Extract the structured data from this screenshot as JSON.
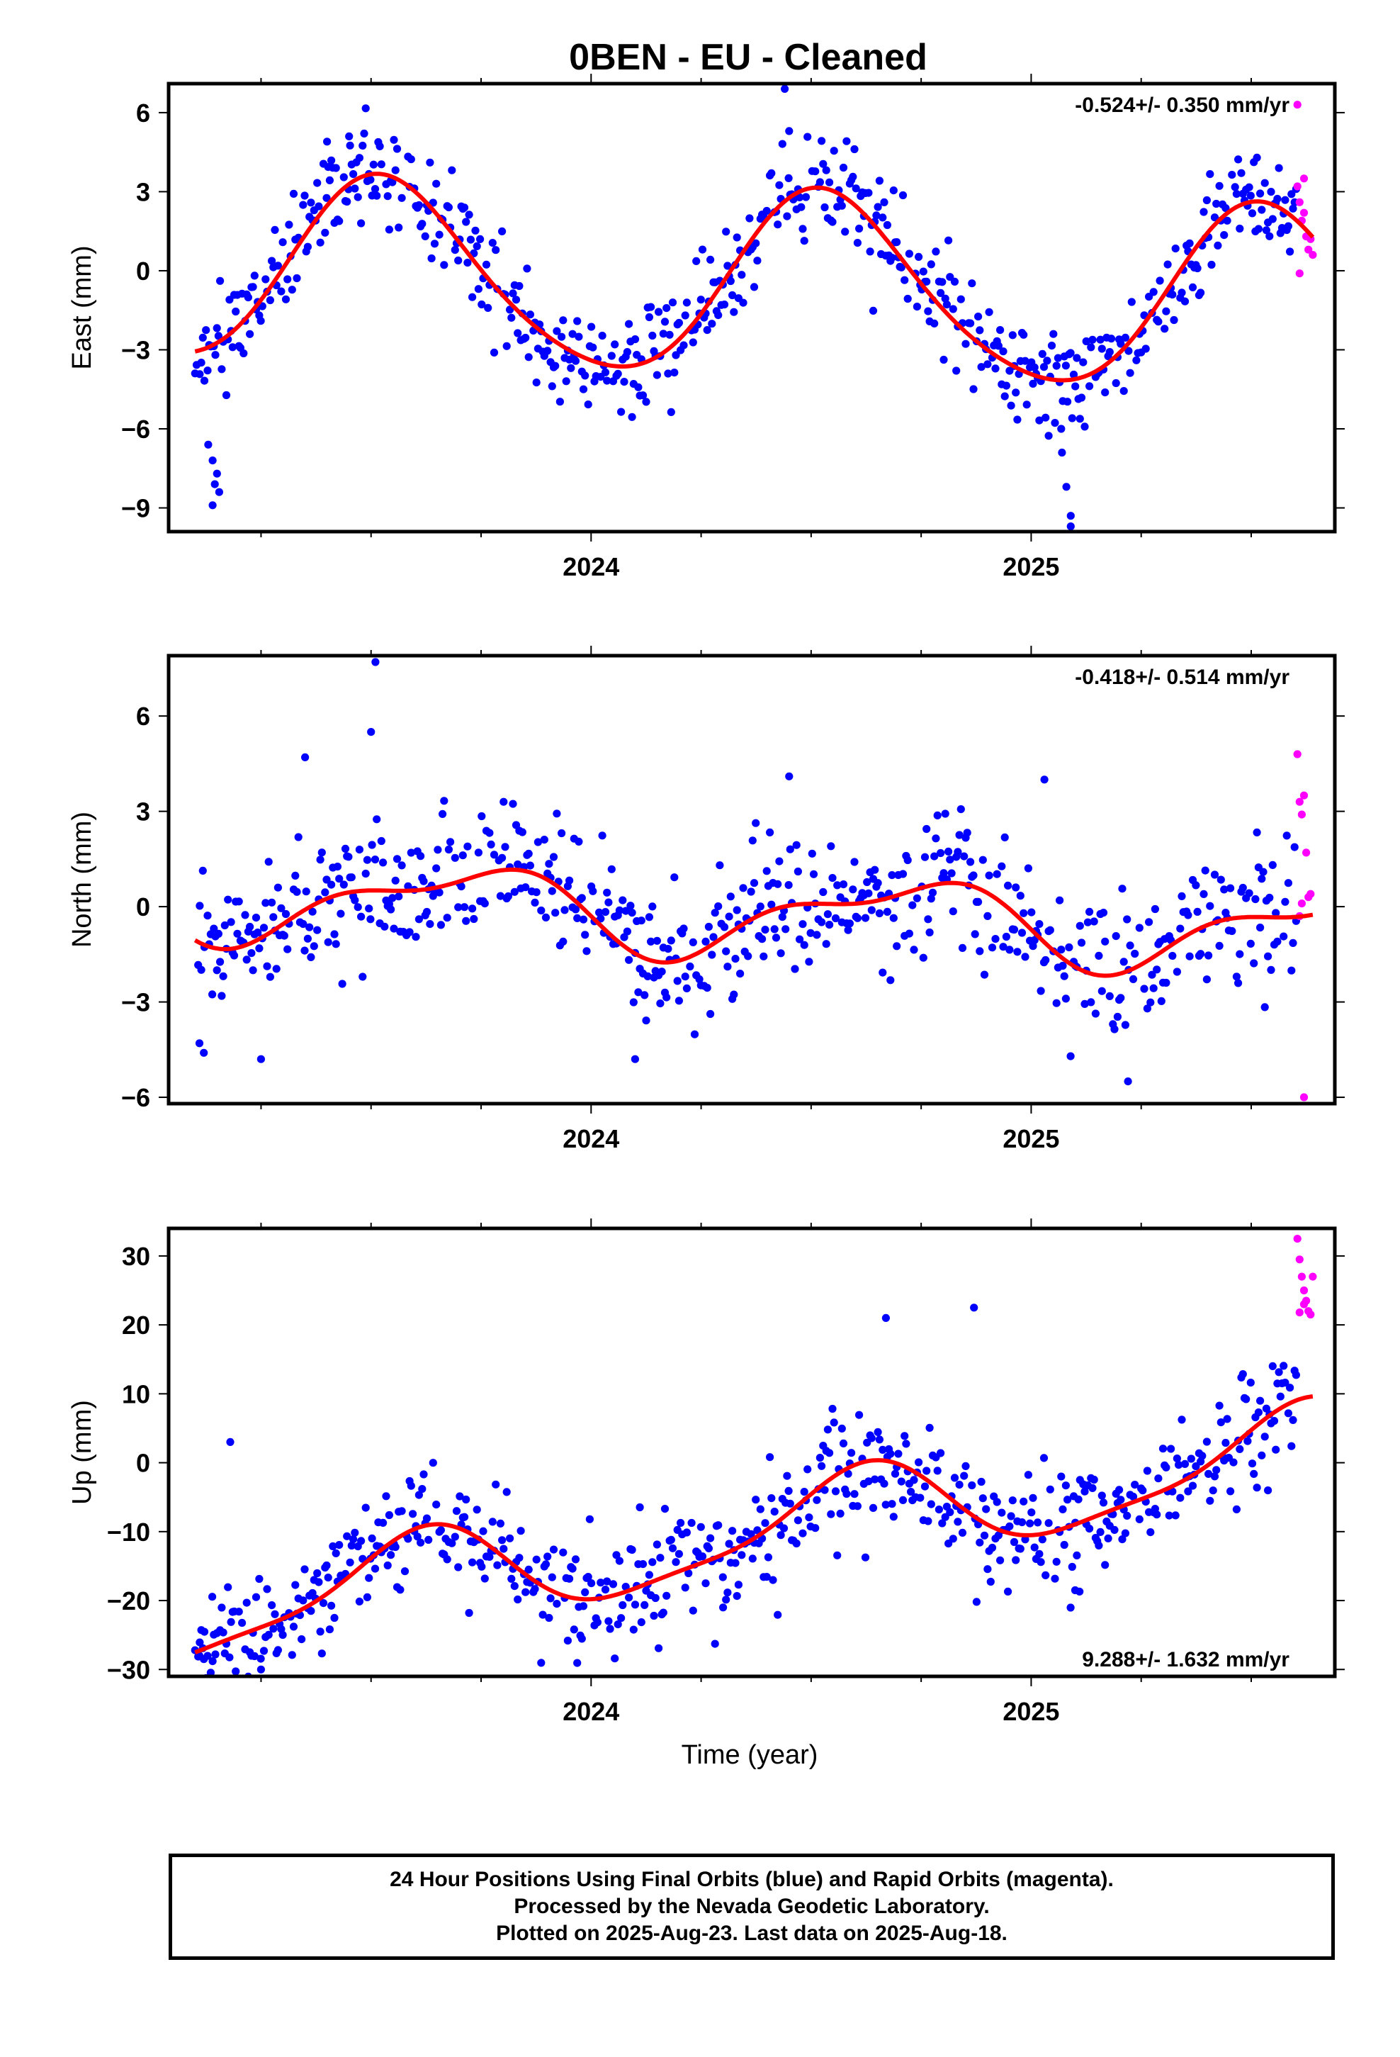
{
  "figure": {
    "title": "0BEN  - EU - Cleaned",
    "xlabel": "Time (year)"
  },
  "colors": {
    "final": "#0000ff",
    "rapid": "#ff00ff",
    "model": "#ff0000",
    "frame": "#000000"
  },
  "chart_data": [
    {
      "type": "scatter",
      "name": "east",
      "ylabel": "East (mm)",
      "rate_text": "-0.524+/- 0.350 mm/yr",
      "rate_position": "top-right",
      "xlim": [
        2023.04,
        2025.69
      ],
      "ylim": [
        -9.9,
        7.1
      ],
      "xticks": [
        2024,
        2025
      ],
      "xtick_labels": [
        "2024",
        "2025"
      ],
      "yticks": [
        -9,
        -6,
        -3,
        0,
        3,
        6
      ],
      "ytick_labels": [
        "−9",
        "−6",
        "−3",
        "0",
        "3",
        "6"
      ],
      "model": {
        "start": 2023.1,
        "end": 2025.64,
        "rate": -0.524,
        "offset": -0.4,
        "a1": -0.7,
        "b1": -3.4,
        "a2": -0.1,
        "b2": 0.4
      },
      "noise_sd": 0.95,
      "seed": 11,
      "outliers": [
        {
          "x": 2023.13,
          "y": -6.6
        },
        {
          "x": 2023.14,
          "y": -7.2
        },
        {
          "x": 2023.15,
          "y": -7.7
        },
        {
          "x": 2023.145,
          "y": -8.1
        },
        {
          "x": 2023.155,
          "y": -8.4
        },
        {
          "x": 2023.14,
          "y": -8.9
        },
        {
          "x": 2024.44,
          "y": 6.9
        },
        {
          "x": 2024.45,
          "y": 5.3
        },
        {
          "x": 2025.07,
          "y": -6.9
        },
        {
          "x": 2025.08,
          "y": -8.2
        },
        {
          "x": 2025.09,
          "y": -9.3
        },
        {
          "x": 2025.09,
          "y": -9.7
        },
        {
          "x": 2023.4,
          "y": 4.9
        },
        {
          "x": 2023.45,
          "y": 5.1
        }
      ],
      "rapid_points": [
        {
          "x": 2025.605,
          "y": 6.3
        },
        {
          "x": 2025.605,
          "y": 3.2
        },
        {
          "x": 2025.61,
          "y": 2.6
        },
        {
          "x": 2025.615,
          "y": 1.9
        },
        {
          "x": 2025.62,
          "y": 3.5
        },
        {
          "x": 2025.625,
          "y": 1.3
        },
        {
          "x": 2025.63,
          "y": 0.8
        },
        {
          "x": 2025.635,
          "y": 1.2
        },
        {
          "x": 2025.64,
          "y": 0.6
        },
        {
          "x": 2025.61,
          "y": -0.1
        },
        {
          "x": 2025.62,
          "y": 2.2
        }
      ]
    },
    {
      "type": "scatter",
      "name": "north",
      "ylabel": "North (mm)",
      "rate_text": "-0.418+/- 0.514 mm/yr",
      "rate_position": "top-right",
      "xlim": [
        2023.04,
        2025.69
      ],
      "ylim": [
        -6.2,
        7.9
      ],
      "xticks": [
        2024,
        2025
      ],
      "xtick_labels": [
        "2024",
        "2025"
      ],
      "yticks": [
        -6,
        -3,
        0,
        3,
        6
      ],
      "ytick_labels": [
        "−6",
        "−3",
        "0",
        "3",
        "6"
      ],
      "model": {
        "start": 2023.1,
        "end": 2025.64,
        "rate": -0.418,
        "offset": -0.1,
        "a1": -1.1,
        "b1": -0.3,
        "a2": -0.5,
        "b2": 0.1
      },
      "noise_sd": 1.05,
      "seed": 23,
      "outliers": [
        {
          "x": 2023.11,
          "y": -4.3
        },
        {
          "x": 2023.12,
          "y": -4.6
        },
        {
          "x": 2023.51,
          "y": 7.7
        },
        {
          "x": 2023.5,
          "y": 5.5
        },
        {
          "x": 2023.25,
          "y": -4.8
        },
        {
          "x": 2023.35,
          "y": 4.7
        },
        {
          "x": 2024.45,
          "y": 4.1
        },
        {
          "x": 2025.22,
          "y": -5.5
        },
        {
          "x": 2025.03,
          "y": 4.0
        },
        {
          "x": 2024.1,
          "y": -4.8
        }
      ],
      "rapid_points": [
        {
          "x": 2025.605,
          "y": 4.8
        },
        {
          "x": 2025.61,
          "y": 3.3
        },
        {
          "x": 2025.615,
          "y": 2.9
        },
        {
          "x": 2025.62,
          "y": 3.5
        },
        {
          "x": 2025.625,
          "y": 1.7
        },
        {
          "x": 2025.63,
          "y": 0.3
        },
        {
          "x": 2025.635,
          "y": 0.4
        },
        {
          "x": 2025.61,
          "y": -0.3
        },
        {
          "x": 2025.615,
          "y": 0.1
        },
        {
          "x": 2025.62,
          "y": -6.0
        }
      ]
    },
    {
      "type": "scatter",
      "name": "up",
      "ylabel": "Up (mm)",
      "rate_text": "9.288+/- 1.632 mm/yr",
      "rate_position": "bottom-right",
      "xlim": [
        2023.04,
        2025.69
      ],
      "ylim": [
        -31,
        34
      ],
      "xticks": [
        2024,
        2025
      ],
      "xtick_labels": [
        "2024",
        "2025"
      ],
      "yticks": [
        -30,
        -20,
        -10,
        0,
        10,
        20,
        30
      ],
      "ytick_labels": [
        "−30",
        "−20",
        "−10",
        "0",
        "10",
        "20",
        "30"
      ],
      "model": {
        "start": 2023.1,
        "end": 2025.64,
        "rate": 9.288,
        "offset": -13.7,
        "a1": -4.0,
        "b1": -5.3,
        "a2": 1.5,
        "b2": -0.8
      },
      "noise_sd": 4.2,
      "seed": 37,
      "outliers": [
        {
          "x": 2023.11,
          "y": -28.0
        },
        {
          "x": 2023.12,
          "y": -28.5
        },
        {
          "x": 2023.14,
          "y": -28.8
        },
        {
          "x": 2023.25,
          "y": -30.0
        },
        {
          "x": 2023.18,
          "y": 3.0
        },
        {
          "x": 2024.3,
          "y": -21.0
        },
        {
          "x": 2025.1,
          "y": -18.5
        },
        {
          "x": 2025.11,
          "y": -18.7
        },
        {
          "x": 2024.87,
          "y": 22.5
        },
        {
          "x": 2024.67,
          "y": 21.0
        }
      ],
      "rapid_points": [
        {
          "x": 2025.605,
          "y": 32.5
        },
        {
          "x": 2025.61,
          "y": 29.5
        },
        {
          "x": 2025.615,
          "y": 27.0
        },
        {
          "x": 2025.62,
          "y": 25.0
        },
        {
          "x": 2025.625,
          "y": 23.5
        },
        {
          "x": 2025.63,
          "y": 22.0
        },
        {
          "x": 2025.635,
          "y": 21.5
        },
        {
          "x": 2025.64,
          "y": 27.0
        },
        {
          "x": 2025.61,
          "y": 21.8
        },
        {
          "x": 2025.62,
          "y": 23.0
        }
      ]
    }
  ],
  "caption": {
    "line1": "24 Hour Positions Using Final Orbits (blue) and Rapid Orbits (magenta).",
    "line2": "Processed by the Nevada Geodetic Laboratory.",
    "line3": "Plotted on 2025-Aug-23. Last data on 2025-Aug-18."
  }
}
